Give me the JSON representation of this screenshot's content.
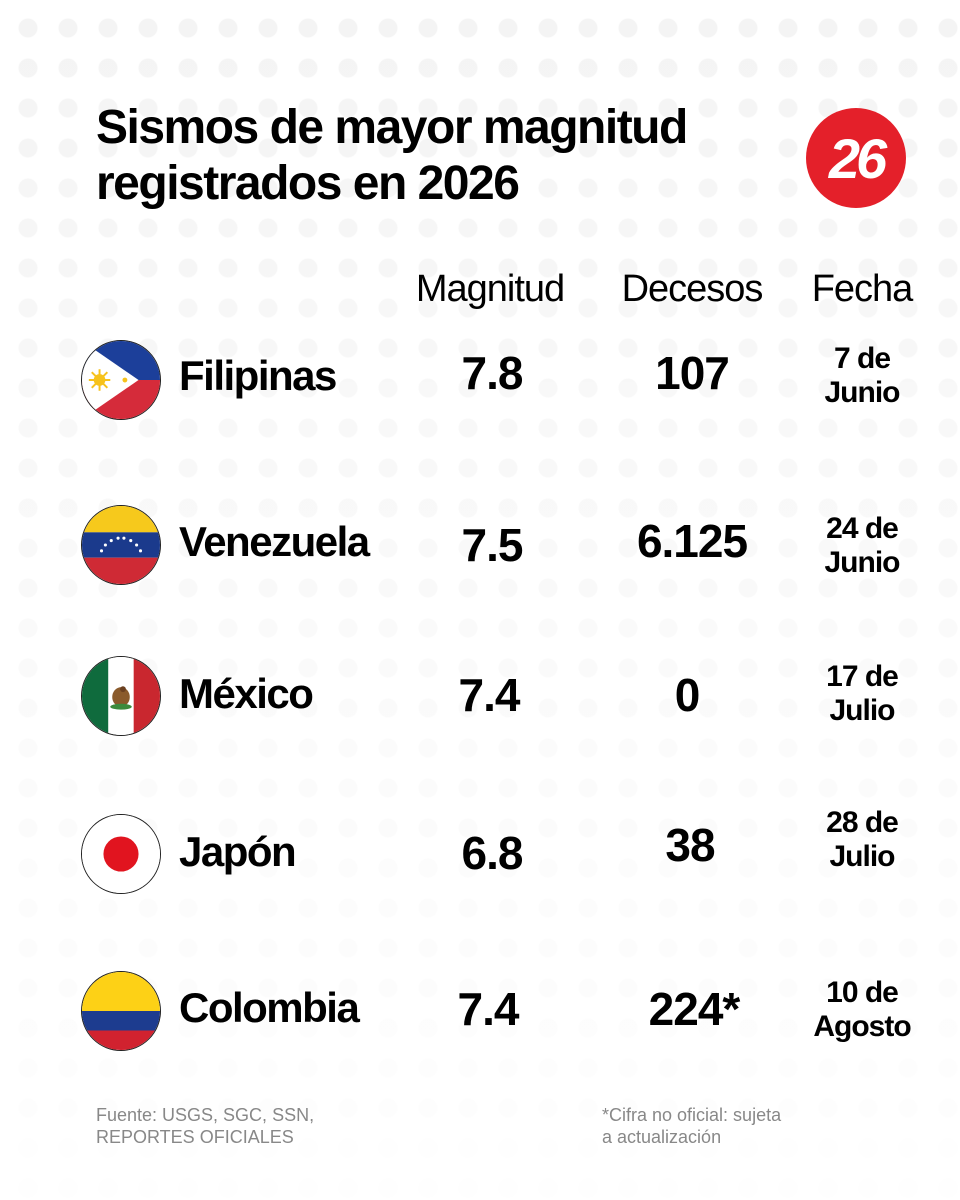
{
  "title_line1": "Sismos de mayor magnitud",
  "title_line2": "registrados en 2026",
  "logo": {
    "text": "26",
    "color": "#e4202a"
  },
  "chart_data": {
    "type": "table",
    "columns": [
      "Magnitud",
      "Decesos",
      "Fecha"
    ],
    "rows": [
      {
        "country": "Filipinas",
        "flag": "philippines-flag-icon",
        "magnitude": "7.8",
        "deaths": "107",
        "date_line1": "7 de",
        "date_line2": "Junio"
      },
      {
        "country": "Venezuela",
        "flag": "venezuela-flag-icon",
        "magnitude": "7.5",
        "deaths": "6.125",
        "date_line1": "24 de",
        "date_line2": "Junio"
      },
      {
        "country": "México",
        "flag": "mexico-flag-icon",
        "magnitude": "7.4",
        "deaths": "0",
        "date_line1": "17 de",
        "date_line2": "Julio"
      },
      {
        "country": "Japón",
        "flag": "japan-flag-icon",
        "magnitude": "6.8",
        "deaths": "38",
        "date_line1": "28 de",
        "date_line2": "Julio"
      },
      {
        "country": "Colombia",
        "flag": "colombia-flag-icon",
        "magnitude": "7.4",
        "deaths": "224*",
        "date_line1": "10 de",
        "date_line2": "Agosto"
      }
    ]
  },
  "footer": {
    "source_line1": "Fuente: USGS, SGC, SSN,",
    "source_line2": "REPORTES OFICIALES",
    "note_line1": "*Cifra no oficial: sujeta",
    "note_line2": "a actualización"
  }
}
